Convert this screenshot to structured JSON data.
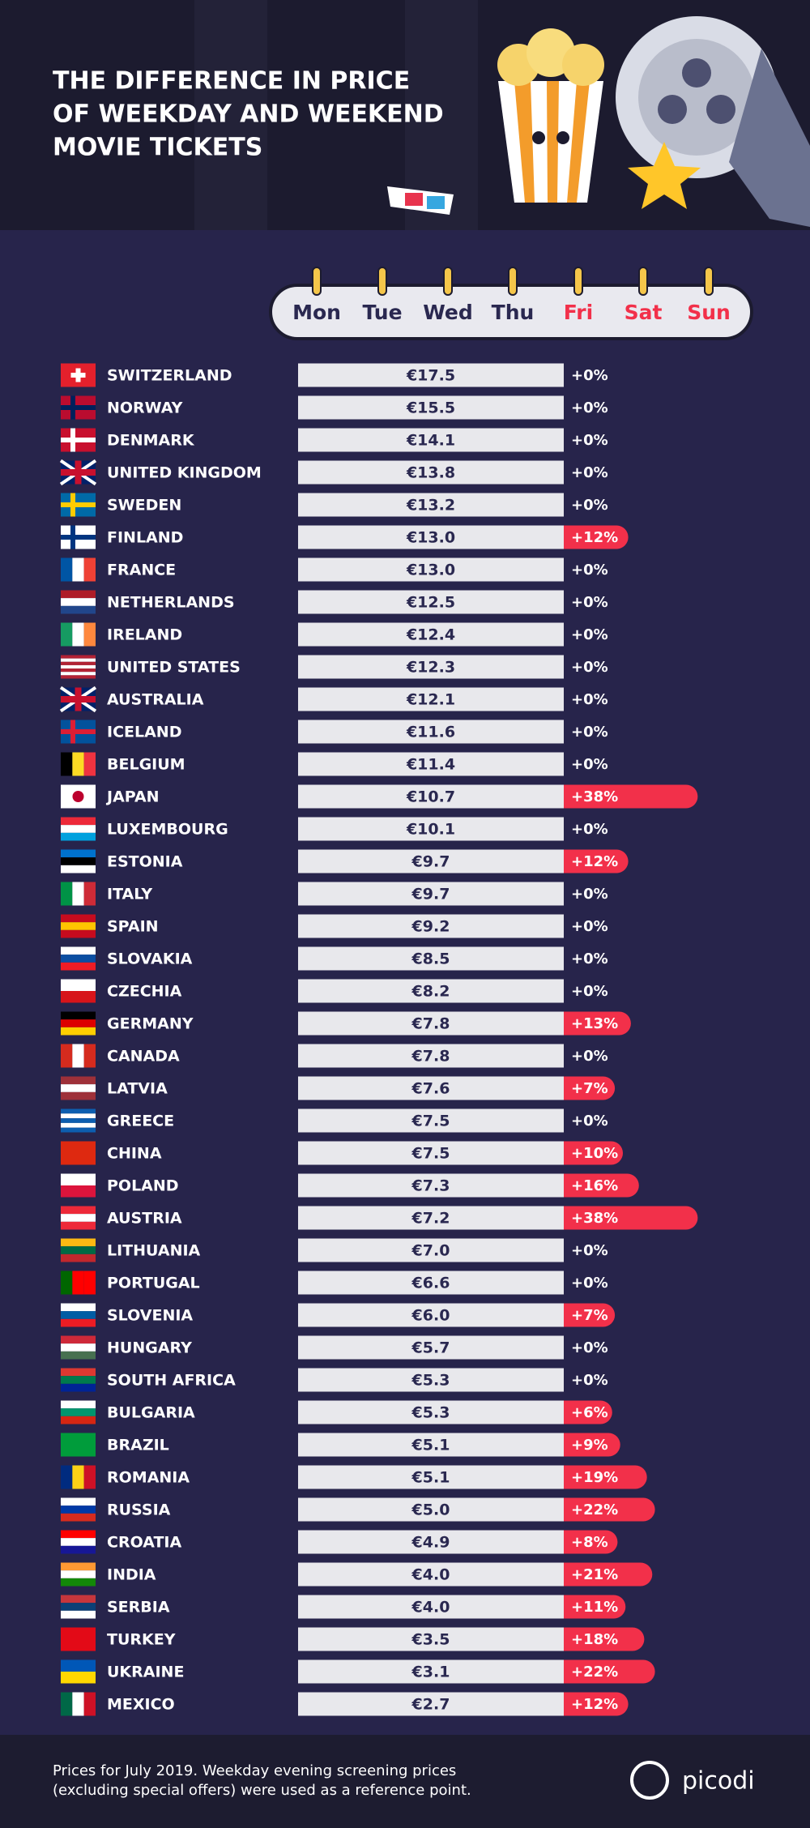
{
  "chart_data": {
    "type": "price-list",
    "title_lines": [
      "THE DIFFERENCE IN PRICE",
      "OF WEEKDAY AND WEEKEND",
      "MOVIE TICKETS"
    ],
    "days": [
      "Mon",
      "Tue",
      "Wed",
      "Thu",
      "Fri",
      "Sat",
      "Sun"
    ],
    "day_colors": [
      "#2a2850",
      "#2a2850",
      "#2a2850",
      "#2a2850",
      "#f2304a",
      "#f2304a",
      "#f2304a"
    ],
    "categories": [
      "SWITZERLAND",
      "NORWAY",
      "DENMARK",
      "UNITED KINGDOM",
      "SWEDEN",
      "FINLAND",
      "FRANCE",
      "NETHERLANDS",
      "IRELAND",
      "UNITED STATES",
      "AUSTRALIA",
      "ICELAND",
      "BELGIUM",
      "JAPAN",
      "LUXEMBOURG",
      "ESTONIA",
      "ITALY",
      "SPAIN",
      "SLOVAKIA",
      "CZECHIA",
      "GERMANY",
      "CANADA",
      "LATVIA",
      "GREECE",
      "CHINA",
      "POLAND",
      "AUSTRIA",
      "LITHUANIA",
      "PORTUGAL",
      "SLOVENIA",
      "HUNGARY",
      "SOUTH AFRICA",
      "BULGARIA",
      "BRAZIL",
      "ROMANIA",
      "RUSSIA",
      "CROATIA",
      "INDIA",
      "SERBIA",
      "TURKEY",
      "UKRAINE",
      "MEXICO"
    ],
    "weekday_price": {
      "color": "#e8e8ec",
      "values": [
        17.5,
        15.5,
        14.1,
        13.8,
        13.2,
        13.0,
        13.0,
        12.5,
        12.4,
        12.3,
        12.1,
        11.6,
        11.4,
        10.7,
        10.1,
        9.7,
        9.7,
        9.2,
        8.5,
        8.2,
        7.8,
        7.8,
        7.6,
        7.5,
        7.5,
        7.3,
        7.2,
        7.0,
        6.6,
        6.0,
        5.7,
        5.3,
        5.3,
        5.1,
        5.1,
        5.0,
        4.9,
        4.0,
        4.0,
        3.5,
        3.1,
        2.7
      ],
      "value_labels": [
        "€17.5",
        "€15.5",
        "€14.1",
        "€13.8",
        "€13.2",
        "€13.0",
        "€13.0",
        "€12.5",
        "€12.4",
        "€12.3",
        "€12.1",
        "€11.6",
        "€11.4",
        "€10.7",
        "€10.1",
        "€9.7",
        "€9.7",
        "€9.2",
        "€8.5",
        "€8.2",
        "€7.8",
        "€7.8",
        "€7.6",
        "€7.5",
        "€7.5",
        "€7.3",
        "€7.2",
        "€7.0",
        "€6.6",
        "€6.0",
        "€5.7",
        "€5.3",
        "€5.3",
        "€5.1",
        "€5.1",
        "€5.0",
        "€4.9",
        "€4.0",
        "€4.0",
        "€3.5",
        "€3.1",
        "€2.7"
      ]
    },
    "weekend_increase": {
      "color": "#f2304a",
      "values": [
        0,
        0,
        0,
        0,
        0,
        12,
        0,
        0,
        0,
        0,
        0,
        0,
        0,
        38,
        0,
        12,
        0,
        0,
        0,
        0,
        13,
        0,
        7,
        0,
        10,
        16,
        38,
        0,
        0,
        7,
        0,
        0,
        6,
        9,
        19,
        22,
        8,
        21,
        11,
        18,
        22,
        12
      ],
      "value_labels": [
        "+0%",
        "+0%",
        "+0%",
        "+0%",
        "+0%",
        "+12%",
        "+0%",
        "+0%",
        "+0%",
        "+0%",
        "+0%",
        "+0%",
        "+0%",
        "+38%",
        "+0%",
        "+12%",
        "+0%",
        "+0%",
        "+0%",
        "+0%",
        "+13%",
        "+0%",
        "+7%",
        "+0%",
        "+10%",
        "+16%",
        "+38%",
        "+0%",
        "+0%",
        "+7%",
        "+0%",
        "+0%",
        "+6%",
        "+9%",
        "+19%",
        "+22%",
        "+8%",
        "+21%",
        "+11%",
        "+18%",
        "+22%",
        "+12%"
      ]
    },
    "footnote_lines": [
      "Prices for July 2019. Weekday evening screening prices",
      "(excluding special offers) were used as a reference point."
    ],
    "brand": "picodi"
  }
}
